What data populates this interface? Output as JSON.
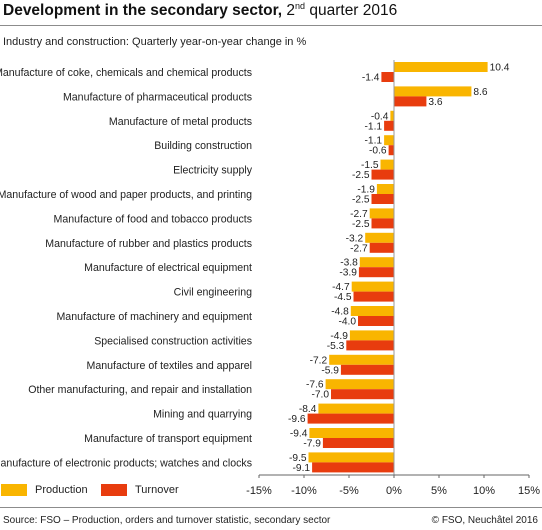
{
  "title": {
    "main": "Development in the secondary sector,",
    "quarter_num": "2",
    "quarter_sup": "nd",
    "quarter_rest": "quarter 2016"
  },
  "subtitle": "Industry and construction: Quarterly year-on-year change in %",
  "legend": [
    {
      "label": "Production",
      "color": "#f9b500"
    },
    {
      "label": "Turnover",
      "color": "#e83c0e"
    }
  ],
  "footer": {
    "source": "Source: FSO – Production, orders and turnover statistic, secondary sector",
    "copyright": "© FSO, Neuchâtel 2016"
  },
  "chart_data": {
    "type": "bar",
    "orientation": "horizontal",
    "xlim": [
      -15,
      15
    ],
    "xticks": [
      "-15%",
      "-10%",
      "-5%",
      "0%",
      "5%",
      "10%",
      "15%"
    ],
    "tick_values": [
      -15,
      -10,
      -5,
      0,
      5,
      10,
      15
    ],
    "categories": [
      "Manufacture of coke, chemicals and chemical products",
      "Manufacture of pharmaceutical products",
      "Manufacture of metal products",
      "Building construction",
      "Electricity supply",
      "Manufacture of wood and paper products, and printing",
      "Manufacture of food and tobacco products",
      "Manufacture of rubber and plastics products",
      "Manufacture of electrical equipment",
      "Civil engineering",
      "Manufacture of machinery and equipment",
      "Specialised construction activities",
      "Manufacture of textiles and apparel",
      "Other manufacturing, and repair and installation",
      "Mining and quarrying",
      "Manufacture of transport equipment",
      "Manufacture of electronic products; watches and clocks"
    ],
    "series": [
      {
        "name": "Production",
        "color": "#f9b500",
        "values": [
          10.4,
          8.6,
          -0.4,
          -1.1,
          -1.5,
          -1.9,
          -2.7,
          -3.2,
          -3.8,
          -4.7,
          -4.8,
          -4.9,
          -7.2,
          -7.6,
          -8.4,
          -9.4,
          -9.5
        ],
        "labels": [
          "10.4",
          "8.6",
          "-0.4",
          "-1.1",
          "-1.5",
          "-1.9",
          "-2.7",
          "-3.2",
          "-3.8",
          "-4.7",
          "-4.8",
          "-4.9",
          "-7.2",
          "-7.6",
          "-8.4",
          "-9.4",
          "-9.5"
        ]
      },
      {
        "name": "Turnover",
        "color": "#e83c0e",
        "values": [
          -1.4,
          3.6,
          -1.1,
          -0.6,
          -2.5,
          -2.5,
          -2.5,
          -2.7,
          -3.9,
          -4.5,
          -4.0,
          -5.3,
          -5.9,
          -7.0,
          -9.6,
          -7.9,
          -9.1
        ],
        "labels": [
          "-1.4",
          "3.6",
          "-1.1",
          "-0.6",
          "-2.5",
          "-2.5",
          "-2.5",
          "-2.7",
          "-3.9",
          "-4.5",
          "-4.0",
          "-5.3",
          "-5.9",
          "-7.0",
          "-9.6",
          "-7.9",
          "-9.1"
        ]
      }
    ],
    "grid": false,
    "legend_position": "bottom-left"
  }
}
